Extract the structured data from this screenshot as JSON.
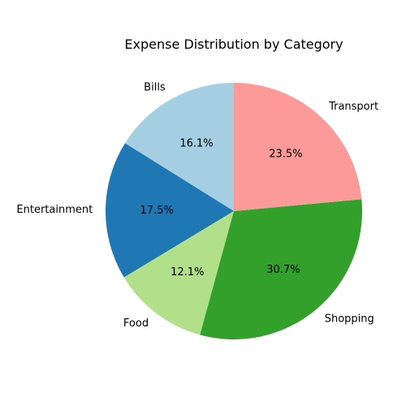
{
  "chart_data": {
    "type": "pie",
    "title": "Expense Distribution by Category",
    "start_angle_deg": 90,
    "direction": "counterclockwise",
    "slices": [
      {
        "label": "Bills",
        "percent": 16.1,
        "percent_label": "16.1%",
        "color": "#a6cee3"
      },
      {
        "label": "Entertainment",
        "percent": 17.5,
        "percent_label": "17.5%",
        "color": "#1f78b4"
      },
      {
        "label": "Food",
        "percent": 12.1,
        "percent_label": "12.1%",
        "color": "#b2df8a"
      },
      {
        "label": "Shopping",
        "percent": 30.7,
        "percent_label": "30.7%",
        "color": "#33a02c"
      },
      {
        "label": "Transport",
        "percent": 23.5,
        "percent_label": "23.5%",
        "color": "#fb9a99"
      }
    ]
  }
}
